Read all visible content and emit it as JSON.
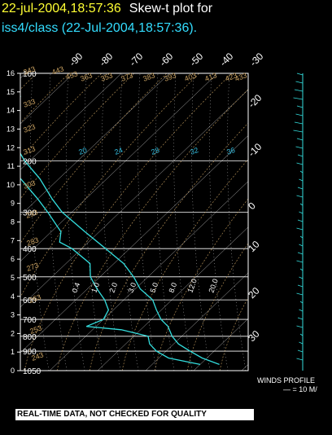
{
  "title": {
    "timestamp": "22-jul-2004,18:57:36",
    "label": "Skew-t plot for",
    "subtitle": "iss4/class (22-Jul-2004,18:57:36)."
  },
  "banner": "REAL-TIME DATA, NOT CHECKED FOR QUALITY",
  "winds": {
    "title": "WINDS PROFILE",
    "scale": "— = 10 M/"
  },
  "chart_data": {
    "type": "line",
    "yaxis_left_ticks": [
      "0",
      "1",
      "2",
      "3",
      "4",
      "5",
      "6",
      "7",
      "8",
      "9",
      "10",
      "11",
      "12",
      "13",
      "14",
      "15",
      "16"
    ],
    "pressure_ticks": [
      "100",
      "200",
      "300",
      "400",
      "500",
      "600",
      "700",
      "800",
      "900",
      "1050"
    ],
    "temperature_top_ticks": [
      "-90",
      "-80",
      "-70",
      "-60",
      "-50",
      "-40",
      "-30"
    ],
    "temperature_right_ticks": [
      "-20",
      "-10",
      "0",
      "10",
      "20",
      "30"
    ],
    "dry_adiabat_labels": [
      "343",
      "333",
      "323",
      "313",
      "303",
      "293",
      "283",
      "273",
      "263",
      "253",
      "243",
      "363",
      "353",
      "373",
      "383",
      "393",
      "403",
      "413",
      "423",
      "433",
      "443",
      "453"
    ],
    "mixing_ratio_labels": [
      "20",
      "24",
      "28",
      "32",
      "36"
    ],
    "moist_labels": [
      "0.4",
      "1.0",
      "2.0",
      "3.0",
      "5.0",
      "8.0",
      "12.0",
      "20.0"
    ],
    "colors": {
      "temperature": "#33dddd",
      "dewpoint": "#33dddd",
      "isobar": "#ffffff",
      "isotherm": "#ffffff",
      "adiabat": "#c8a060",
      "moist": "#ffffff"
    },
    "series": [
      {
        "name": "",
        "points": [
          [
            100,
            -82
          ],
          [
            110,
            -79
          ],
          [
            120,
            -76
          ],
          [
            140,
            -73
          ],
          [
            170,
            -68
          ],
          [
            200,
            -61
          ],
          [
            230,
            -54
          ],
          [
            270,
            -47
          ],
          [
            300,
            -42
          ],
          [
            350,
            -33
          ],
          [
            400,
            -25
          ],
          [
            450,
            -18
          ],
          [
            500,
            -13
          ],
          [
            550,
            -9
          ],
          [
            600,
            -4
          ],
          [
            650,
            -1
          ],
          [
            700,
            2
          ],
          [
            740,
            5
          ],
          [
            800,
            8
          ],
          [
            850,
            11
          ],
          [
            900,
            15
          ],
          [
            950,
            19
          ],
          [
            1000,
            24
          ]
        ]
      },
      {
        "name": "",
        "points": [
          [
            100,
            -84
          ],
          [
            110,
            -82
          ],
          [
            120,
            -81
          ],
          [
            140,
            -79
          ],
          [
            170,
            -74
          ],
          [
            200,
            -66
          ],
          [
            230,
            -58
          ],
          [
            270,
            -50
          ],
          [
            300,
            -45
          ],
          [
            350,
            -38
          ],
          [
            380,
            -36
          ],
          [
            400,
            -32
          ],
          [
            450,
            -25
          ],
          [
            500,
            -22
          ],
          [
            550,
            -18
          ],
          [
            600,
            -14
          ],
          [
            650,
            -11
          ],
          [
            700,
            -10
          ],
          [
            740,
            -12
          ],
          [
            760,
            -4
          ],
          [
            800,
            3
          ],
          [
            850,
            5
          ],
          [
            900,
            8
          ],
          [
            950,
            12
          ],
          [
            1000,
            20
          ]
        ]
      }
    ]
  }
}
